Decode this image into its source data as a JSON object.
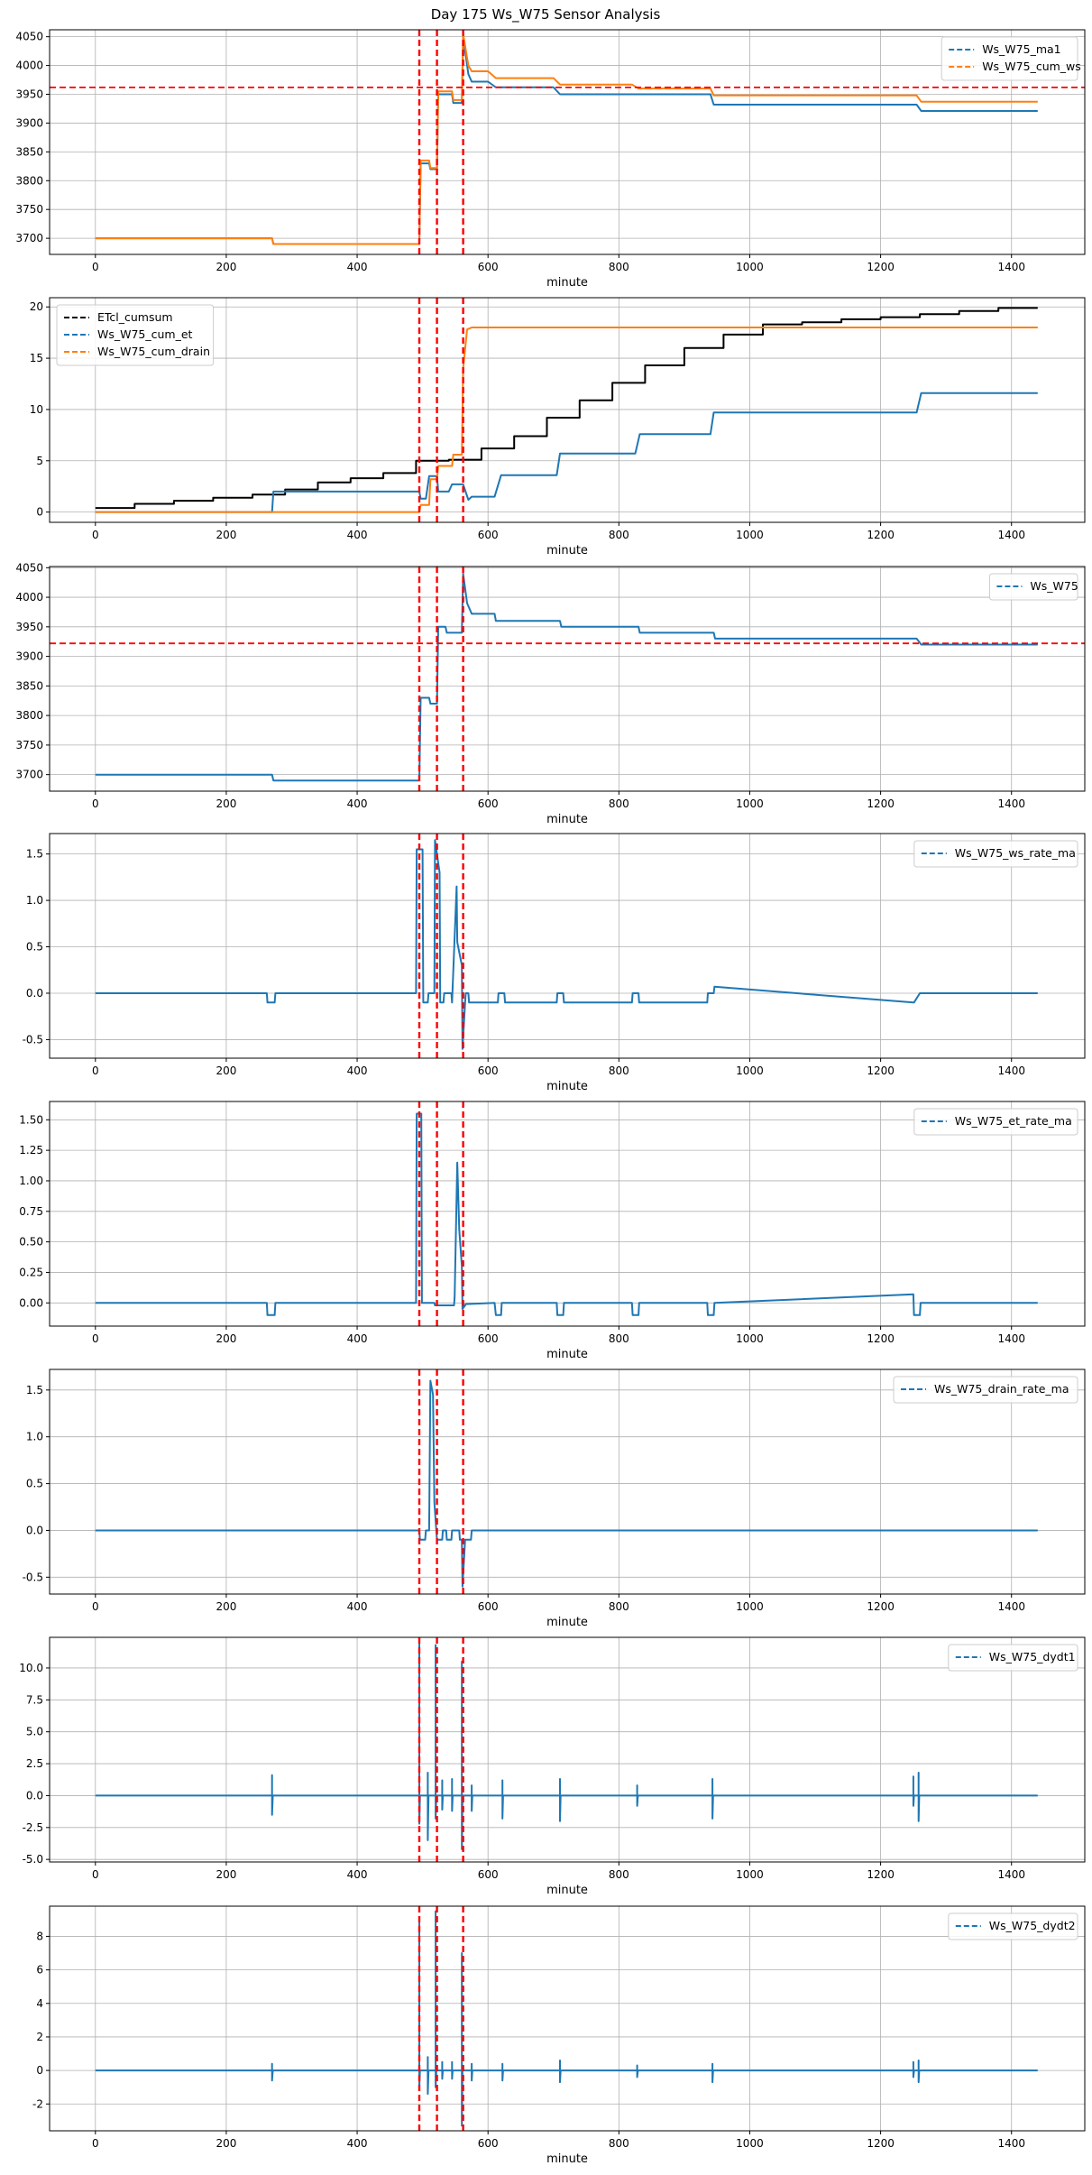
{
  "figure": {
    "title": "Day 175 Ws_W75 Sensor Analysis"
  },
  "colors": {
    "blue": "#1f77b4",
    "orange": "#ff7f0e",
    "black": "#000000",
    "red": "#ff0000",
    "grid": "#b0b0b0"
  },
  "events": [
    495,
    522,
    562
  ],
  "chart_data": [
    {
      "type": "line",
      "xlabel": "minute",
      "ylabel": "",
      "grid": true,
      "legend": "top-right",
      "xlim": [
        -70,
        1512
      ],
      "xticks": [
        0,
        200,
        400,
        600,
        800,
        1000,
        1200,
        1400
      ],
      "ylim": [
        3672,
        4062
      ],
      "yticks": [
        3700,
        3750,
        3800,
        3850,
        3900,
        3950,
        4000,
        4050
      ],
      "hline": 3962,
      "series": [
        {
          "name": "Ws_W75_ma1",
          "color": "#1f77b4",
          "x": [
            0,
            270,
            272,
            495,
            497,
            510,
            512,
            522,
            524,
            545,
            547,
            560,
            562,
            570,
            575,
            600,
            612,
            700,
            710,
            940,
            945,
            1255,
            1262,
            1440
          ],
          "y": [
            3700,
            3700,
            3690,
            3690,
            3830,
            3830,
            3820,
            3820,
            3950,
            3950,
            3935,
            3935,
            4050,
            3985,
            3972,
            3972,
            3962,
            3962,
            3950,
            3950,
            3932,
            3932,
            3921,
            3921
          ]
        },
        {
          "name": "Ws_W75_cum_ws",
          "color": "#ff7f0e",
          "x": [
            0,
            270,
            272,
            495,
            497,
            510,
            512,
            522,
            524,
            545,
            547,
            560,
            562,
            570,
            575,
            600,
            612,
            700,
            710,
            820,
            830,
            940,
            945,
            1255,
            1262,
            1440
          ],
          "y": [
            3700,
            3700,
            3690,
            3690,
            3835,
            3835,
            3822,
            3822,
            3955,
            3955,
            3940,
            3940,
            4055,
            4000,
            3990,
            3990,
            3978,
            3978,
            3967,
            3967,
            3960,
            3960,
            3948,
            3948,
            3937,
            3937
          ]
        }
      ]
    },
    {
      "type": "line",
      "xlabel": "minute",
      "ylabel": "",
      "grid": true,
      "legend": "top-left",
      "xlim": [
        -70,
        1512
      ],
      "xticks": [
        0,
        200,
        400,
        600,
        800,
        1000,
        1200,
        1400
      ],
      "ylim": [
        -1,
        20.9
      ],
      "yticks": [
        0,
        5,
        10,
        15,
        20
      ],
      "series": [
        {
          "name": "ETcl_cumsum",
          "color": "#000000",
          "x": [
            0,
            60,
            60,
            120,
            120,
            180,
            180,
            240,
            240,
            290,
            290,
            340,
            340,
            390,
            390,
            440,
            440,
            490,
            490,
            540,
            540,
            590,
            590,
            640,
            640,
            690,
            690,
            740,
            740,
            790,
            790,
            840,
            840,
            900,
            900,
            960,
            960,
            1020,
            1020,
            1080,
            1080,
            1140,
            1140,
            1200,
            1200,
            1260,
            1260,
            1320,
            1320,
            1380,
            1380,
            1440
          ],
          "y": [
            0.4,
            0.4,
            0.8,
            0.8,
            1.1,
            1.1,
            1.4,
            1.4,
            1.7,
            1.7,
            2.2,
            2.2,
            2.9,
            2.9,
            3.3,
            3.3,
            3.8,
            3.8,
            5.0,
            5.0,
            5.1,
            5.1,
            6.2,
            6.2,
            7.4,
            7.4,
            9.2,
            9.2,
            10.9,
            10.9,
            12.6,
            12.6,
            14.3,
            14.3,
            16.0,
            16.0,
            17.3,
            17.3,
            18.3,
            18.3,
            18.5,
            18.5,
            18.8,
            18.8,
            19.0,
            19.0,
            19.3,
            19.3,
            19.6,
            19.6,
            19.9,
            19.9
          ]
        },
        {
          "name": "Ws_W75_cum_et",
          "color": "#1f77b4",
          "x": [
            0,
            270,
            272,
            495,
            497,
            505,
            510,
            522,
            524,
            540,
            545,
            562,
            570,
            575,
            610,
            620,
            705,
            710,
            825,
            832,
            940,
            945,
            1255,
            1262,
            1440
          ],
          "y": [
            0,
            0,
            2.0,
            2.0,
            1.3,
            1.3,
            3.5,
            3.5,
            2.0,
            2.0,
            2.7,
            2.7,
            1.2,
            1.5,
            1.5,
            3.6,
            3.6,
            5.7,
            5.7,
            7.6,
            7.6,
            9.7,
            9.7,
            11.6,
            11.6
          ]
        },
        {
          "name": "Ws_W75_cum_drain",
          "color": "#ff7f0e",
          "x": [
            0,
            495,
            497,
            510,
            512,
            522,
            524,
            545,
            547,
            560,
            562,
            568,
            575,
            1440
          ],
          "y": [
            0,
            0,
            0.7,
            0.7,
            3.2,
            3.2,
            4.5,
            4.5,
            5.6,
            5.6,
            14.0,
            17.8,
            18.0,
            18.0
          ]
        }
      ]
    },
    {
      "type": "line",
      "xlabel": "minute",
      "ylabel": "",
      "grid": true,
      "legend": "top-right",
      "xlim": [
        -70,
        1512
      ],
      "xticks": [
        0,
        200,
        400,
        600,
        800,
        1000,
        1200,
        1400
      ],
      "ylim": [
        3672,
        4052
      ],
      "yticks": [
        3700,
        3750,
        3800,
        3850,
        3900,
        3950,
        4000,
        4050
      ],
      "hline": 3922,
      "series": [
        {
          "name": "Ws_W75",
          "color": "#1f77b4",
          "x": [
            0,
            270,
            272,
            495,
            497,
            510,
            512,
            522,
            524,
            535,
            537,
            560,
            562,
            568,
            575,
            610,
            612,
            710,
            712,
            830,
            832,
            945,
            947,
            1255,
            1262,
            1440
          ],
          "y": [
            3700,
            3700,
            3690,
            3690,
            3830,
            3830,
            3820,
            3820,
            3950,
            3950,
            3940,
            3940,
            4040,
            3990,
            3972,
            3972,
            3960,
            3960,
            3950,
            3950,
            3940,
            3940,
            3930,
            3930,
            3920,
            3920
          ]
        }
      ]
    },
    {
      "type": "line",
      "xlabel": "minute",
      "ylabel": "",
      "grid": true,
      "legend": "top-right",
      "xlim": [
        -70,
        1512
      ],
      "xticks": [
        0,
        200,
        400,
        600,
        800,
        1000,
        1200,
        1400
      ],
      "ylim": [
        -0.7,
        1.72
      ],
      "yticks": [
        -0.5,
        0.0,
        0.5,
        1.0,
        1.5
      ],
      "series": [
        {
          "name": "Ws_W75_ws_rate_ma",
          "color": "#1f77b4",
          "x": [
            0,
            262,
            263,
            274,
            275,
            490,
            491,
            500,
            501,
            508,
            509,
            518,
            519,
            526,
            527,
            532,
            533,
            544,
            545,
            552,
            553,
            560,
            561,
            565,
            566,
            570,
            571,
            615,
            616,
            625,
            626,
            705,
            706,
            715,
            716,
            820,
            821,
            830,
            831,
            935,
            936,
            945,
            946,
            1250,
            1251,
            1260,
            1261,
            1440
          ],
          "y": [
            0,
            0,
            -0.1,
            -0.1,
            0,
            0,
            1.55,
            1.55,
            -0.1,
            -0.1,
            0,
            0,
            1.65,
            1.3,
            -0.1,
            -0.1,
            0,
            0,
            -0.1,
            1.15,
            0.55,
            0.3,
            -0.6,
            -0.1,
            0,
            0,
            -0.1,
            -0.1,
            0,
            0,
            -0.1,
            -0.1,
            0,
            0,
            -0.1,
            -0.1,
            0,
            0,
            -0.1,
            -0.1,
            0,
            0,
            0.07,
            -0.1,
            -0.1,
            0,
            0,
            0
          ]
        }
      ]
    },
    {
      "type": "line",
      "xlabel": "minute",
      "ylabel": "",
      "grid": true,
      "legend": "top-right",
      "xlim": [
        -70,
        1512
      ],
      "xticks": [
        0,
        200,
        400,
        600,
        800,
        1000,
        1200,
        1400
      ],
      "ylim": [
        -0.19,
        1.65
      ],
      "yticks": [
        0.0,
        0.25,
        0.5,
        0.75,
        1.0,
        1.25,
        1.5
      ],
      "series": [
        {
          "name": "Ws_W75_et_rate_ma",
          "color": "#1f77b4",
          "x": [
            0,
            262,
            263,
            274,
            275,
            490,
            491,
            498,
            499,
            518,
            519,
            548,
            549,
            553,
            556,
            560,
            561,
            565,
            566,
            610,
            612,
            620,
            621,
            705,
            706,
            715,
            716,
            820,
            821,
            830,
            831,
            935,
            936,
            945,
            946,
            1250,
            1251,
            1260,
            1261,
            1440
          ],
          "y": [
            0,
            0,
            -0.1,
            -0.1,
            0,
            0,
            1.55,
            1.55,
            0,
            0,
            -0.02,
            -0.02,
            0.05,
            1.15,
            0.6,
            0.3,
            -0.05,
            -0.02,
            -0.01,
            0,
            -0.1,
            -0.1,
            0,
            0,
            -0.1,
            -0.1,
            0,
            0,
            -0.1,
            -0.1,
            0,
            0,
            -0.1,
            -0.1,
            0,
            0.07,
            -0.1,
            -0.1,
            0,
            0
          ]
        }
      ]
    },
    {
      "type": "line",
      "xlabel": "minute",
      "ylabel": "",
      "grid": true,
      "legend": "top-right",
      "xlim": [
        -70,
        1512
      ],
      "xticks": [
        0,
        200,
        400,
        600,
        800,
        1000,
        1200,
        1400
      ],
      "ylim": [
        -0.68,
        1.72
      ],
      "yticks": [
        -0.5,
        0.0,
        0.5,
        1.0,
        1.5
      ],
      "series": [
        {
          "name": "Ws_W75_drain_rate_ma",
          "color": "#1f77b4",
          "x": [
            0,
            495,
            496,
            504,
            505,
            510,
            512,
            516,
            518,
            522,
            523,
            530,
            531,
            536,
            537,
            544,
            545,
            556,
            557,
            560,
            561,
            565,
            566,
            574,
            575,
            1440
          ],
          "y": [
            0,
            0,
            -0.1,
            -0.1,
            0,
            0,
            1.6,
            1.45,
            0.3,
            -0.1,
            -0.1,
            -0.1,
            0,
            0,
            -0.1,
            -0.1,
            0,
            0,
            -0.1,
            -0.1,
            -0.6,
            -0.1,
            -0.1,
            -0.1,
            0,
            0
          ]
        }
      ]
    },
    {
      "type": "line",
      "xlabel": "minute",
      "ylabel": "",
      "grid": true,
      "legend": "top-right",
      "xlim": [
        -70,
        1512
      ],
      "xticks": [
        0,
        200,
        400,
        600,
        800,
        1000,
        1200,
        1400
      ],
      "ylim": [
        -5.2,
        12.4
      ],
      "yticks": [
        -5.0,
        -2.5,
        0.0,
        2.5,
        5.0,
        7.5,
        10.0
      ],
      "series": [
        {
          "name": "Ws_W75_dydt1",
          "color": "#1f77b4",
          "x": [
            0,
            270,
            270,
            270,
            271,
            495,
            495,
            495,
            496,
            508,
            508,
            508,
            509,
            520,
            520,
            520,
            521,
            530,
            530,
            530,
            531,
            545,
            545,
            545,
            546,
            560,
            560,
            560,
            561,
            575,
            575,
            575,
            576,
            622,
            622,
            622,
            623,
            710,
            710,
            710,
            711,
            828,
            828,
            828,
            829,
            943,
            943,
            943,
            944,
            1250,
            1250,
            1250,
            1251,
            1258,
            1258,
            1258,
            1259,
            1440
          ],
          "y": [
            0,
            0,
            1.6,
            -1.5,
            0,
            0,
            12,
            -2.2,
            0,
            0,
            1.8,
            -3.5,
            0,
            0,
            11.8,
            -1.8,
            0,
            0,
            1.2,
            -1.1,
            0,
            0,
            1.3,
            -1.2,
            0,
            0,
            10.5,
            -4.2,
            0,
            0,
            0.8,
            -1.2,
            0,
            0,
            1.2,
            -1.8,
            0,
            0,
            1.3,
            -2.0,
            0,
            0,
            0.8,
            -0.8,
            0,
            0,
            1.3,
            -1.8,
            0,
            0,
            1.5,
            -0.8,
            0,
            0,
            1.8,
            -2.0,
            0,
            0
          ]
        }
      ]
    },
    {
      "type": "line",
      "xlabel": "minute",
      "ylabel": "",
      "grid": true,
      "legend": "top-right",
      "xlim": [
        -70,
        1512
      ],
      "xticks": [
        0,
        200,
        400,
        600,
        800,
        1000,
        1200,
        1400
      ],
      "ylim": [
        -3.6,
        9.8
      ],
      "yticks": [
        -2,
        0,
        2,
        4,
        6,
        8
      ],
      "series": [
        {
          "name": "Ws_W75_dydt2",
          "color": "#1f77b4",
          "x": [
            0,
            270,
            270,
            270,
            271,
            495,
            495,
            495,
            496,
            508,
            508,
            508,
            509,
            520,
            520,
            520,
            521,
            530,
            530,
            530,
            531,
            545,
            545,
            545,
            546,
            560,
            560,
            560,
            561,
            575,
            575,
            575,
            576,
            622,
            622,
            622,
            623,
            710,
            710,
            710,
            711,
            828,
            828,
            828,
            829,
            943,
            943,
            943,
            944,
            1250,
            1250,
            1250,
            1251,
            1258,
            1258,
            1258,
            1259,
            1440
          ],
          "y": [
            0,
            0,
            0.4,
            -0.6,
            0,
            0,
            8.9,
            -1.0,
            0,
            0,
            0.8,
            -1.4,
            0,
            0,
            9.5,
            -1.0,
            0,
            0,
            0.5,
            -0.5,
            0,
            0,
            0.5,
            -0.5,
            0,
            0,
            7.0,
            -3.3,
            0,
            0,
            0.4,
            -0.6,
            0,
            0,
            0.4,
            -0.6,
            0,
            0,
            0.6,
            -0.7,
            0,
            0,
            0.3,
            -0.4,
            0,
            0,
            0.4,
            -0.7,
            0,
            0,
            0.5,
            -0.4,
            0,
            0,
            0.6,
            -0.7,
            0,
            0
          ]
        }
      ]
    }
  ]
}
